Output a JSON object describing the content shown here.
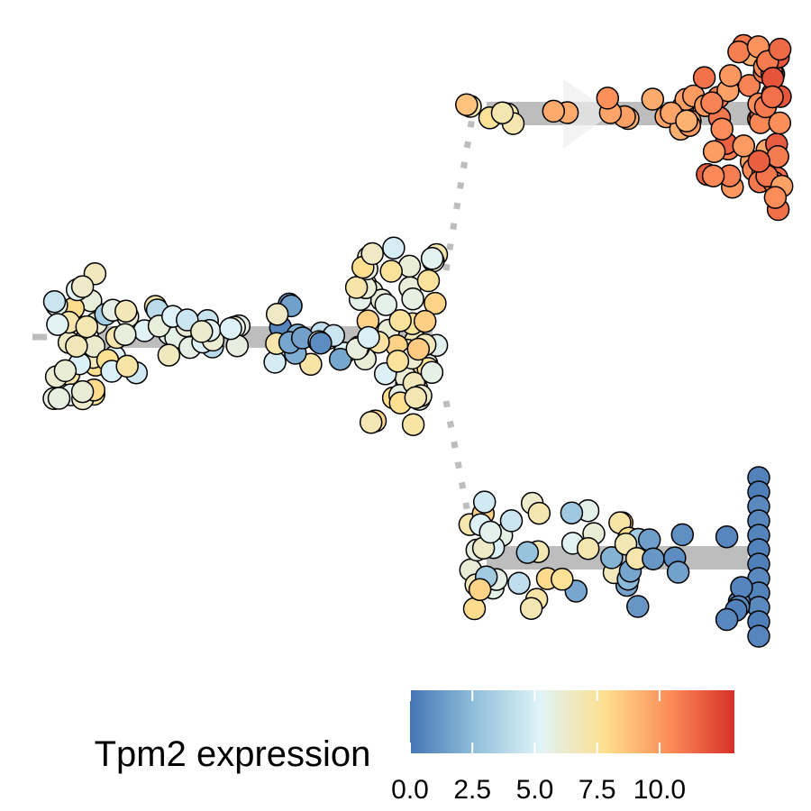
{
  "chart_data": {
    "type": "scatter",
    "subtype": "single-cell trajectory (dendrogram swarm plot)",
    "title": "",
    "legend": {
      "title": "Tpm2 expression",
      "type": "colorbar",
      "placement": "bottom",
      "ticks": [
        "0.0",
        "2.5",
        "5.0",
        "7.5",
        "10.0"
      ],
      "tick_values": [
        0,
        2.5,
        5,
        7.5,
        10
      ],
      "range": [
        0,
        13
      ],
      "palette": [
        "#4575b4",
        "#91bfdb",
        "#e0f3f8",
        "#fee090",
        "#fc8d59",
        "#d73027"
      ]
    },
    "grid": false,
    "branches": [
      {
        "name": "",
        "position": "left (root)",
        "expression_mean": 6.5
      },
      {
        "name": "",
        "position": "top-right",
        "expression_mean": 10.5
      },
      {
        "name": "",
        "position": "bottom-right",
        "expression_mean": 1.0
      }
    ],
    "connector_color": "#bdbdbd"
  }
}
